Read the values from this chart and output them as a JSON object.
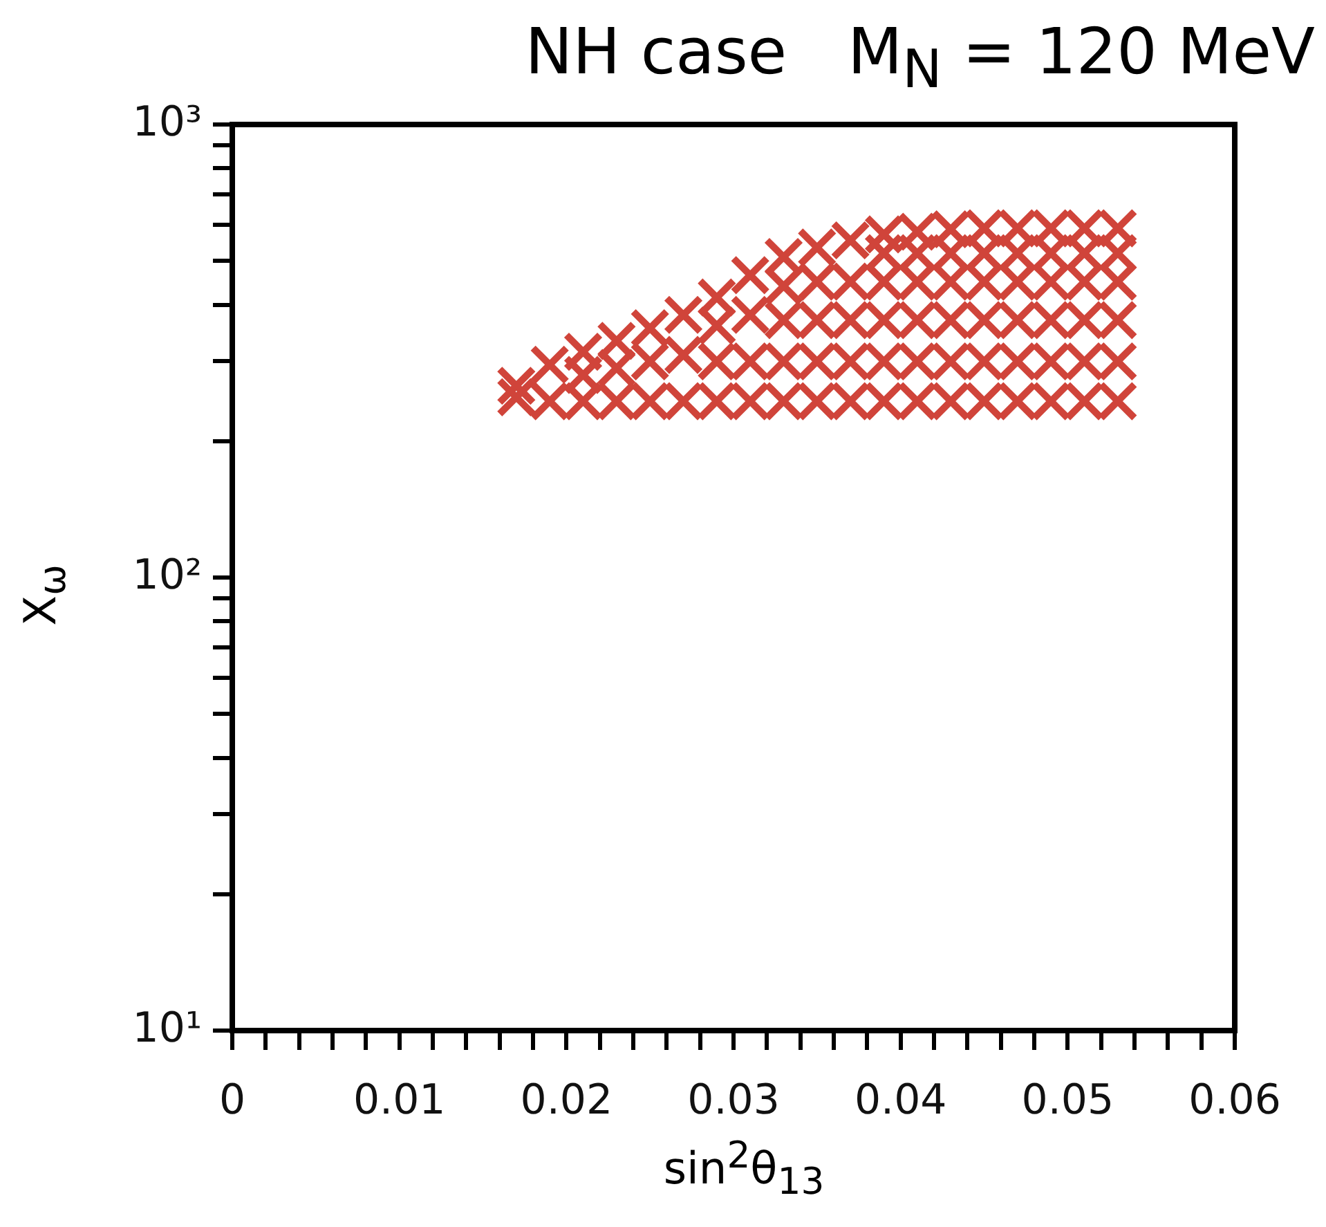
{
  "chart_data": {
    "type": "scatter",
    "title": "NH case   M$_{N}$ = 120 MeV",
    "xlabel": "sin$^{2}$θ$_{13}$",
    "ylabel": "X$_{ω}$",
    "color": "#d0443a",
    "marker": "cross",
    "log": "y",
    "grid": false,
    "legend": false,
    "xlim": [
      0,
      0.06
    ],
    "xticks": [
      0,
      {
        "value": 0.002,
        "label": null
      },
      {
        "value": 0.004,
        "label": null
      },
      {
        "value": 0.006,
        "label": null
      },
      {
        "value": 0.008,
        "label": null
      },
      0.01,
      {
        "value": 0.012,
        "label": null
      },
      {
        "value": 0.014,
        "label": null
      },
      {
        "value": 0.016,
        "label": null
      },
      {
        "value": 0.018,
        "label": null
      },
      0.02,
      {
        "value": 0.022,
        "label": null
      },
      {
        "value": 0.024,
        "label": null
      },
      {
        "value": 0.026,
        "label": null
      },
      {
        "value": 0.028,
        "label": null
      },
      0.03,
      {
        "value": 0.032,
        "label": null
      },
      {
        "value": 0.034,
        "label": null
      },
      {
        "value": 0.036,
        "label": null
      },
      {
        "value": 0.038,
        "label": null
      },
      0.04,
      {
        "value": 0.042,
        "label": null
      },
      {
        "value": 0.044,
        "label": null
      },
      {
        "value": 0.046,
        "label": null
      },
      {
        "value": 0.048,
        "label": null
      },
      0.05,
      {
        "value": 0.052,
        "label": null
      },
      {
        "value": 0.054,
        "label": null
      },
      {
        "value": 0.056,
        "label": null
      },
      {
        "value": 0.058,
        "label": null
      },
      0.06
    ],
    "ylim": [
      10,
      1000
    ],
    "yticks": [
      {
        "value": 10,
        "label": "10¹"
      },
      {
        "value": 20,
        "label": null
      },
      {
        "value": 30,
        "label": null
      },
      {
        "value": 40,
        "label": null
      },
      {
        "value": 50,
        "label": null
      },
      {
        "value": 60,
        "label": null
      },
      {
        "value": 70,
        "label": null
      },
      {
        "value": 80,
        "label": null
      },
      {
        "value": 90,
        "label": null
      },
      {
        "value": 100,
        "label": "10²"
      },
      {
        "value": 200,
        "label": null
      },
      {
        "value": 300,
        "label": null
      },
      {
        "value": 400,
        "label": null
      },
      {
        "value": 500,
        "label": null
      },
      {
        "value": 600,
        "label": null
      },
      {
        "value": 700,
        "label": null
      },
      {
        "value": 800,
        "label": null
      },
      {
        "value": 900,
        "label": null
      },
      {
        "value": 1000,
        "label": "10³"
      }
    ],
    "x": [
      0.017,
      0.017,
      0.019,
      0.019,
      0.021,
      0.021,
      0.021,
      0.023,
      0.023,
      0.023,
      0.025,
      0.025,
      0.025,
      0.027,
      0.027,
      0.027,
      0.029,
      0.029,
      0.029,
      0.029,
      0.031,
      0.031,
      0.031,
      0.031,
      0.033,
      0.033,
      0.033,
      0.033,
      0.033,
      0.035,
      0.035,
      0.035,
      0.035,
      0.035,
      0.037,
      0.037,
      0.037,
      0.037,
      0.037,
      0.039,
      0.039,
      0.039,
      0.039,
      0.039,
      0.039,
      0.041,
      0.041,
      0.041,
      0.041,
      0.041,
      0.041,
      0.043,
      0.043,
      0.043,
      0.043,
      0.043,
      0.043,
      0.045,
      0.045,
      0.045,
      0.045,
      0.045,
      0.045,
      0.047,
      0.047,
      0.047,
      0.047,
      0.047,
      0.047,
      0.049,
      0.049,
      0.049,
      0.049,
      0.049,
      0.049,
      0.051,
      0.051,
      0.051,
      0.051,
      0.051,
      0.051,
      0.053,
      0.053,
      0.053,
      0.053,
      0.053,
      0.053
    ],
    "values": [
      250,
      265,
      245,
      295,
      245,
      280,
      315,
      245,
      290,
      333,
      245,
      300,
      355,
      245,
      310,
      380,
      245,
      300,
      360,
      415,
      245,
      300,
      380,
      465,
      245,
      300,
      370,
      440,
      510,
      245,
      300,
      370,
      450,
      535,
      245,
      300,
      370,
      450,
      555,
      245,
      300,
      370,
      450,
      520,
      572,
      245,
      300,
      370,
      450,
      520,
      580,
      245,
      300,
      370,
      450,
      520,
      587,
      245,
      300,
      370,
      450,
      520,
      590,
      245,
      300,
      370,
      450,
      520,
      590,
      245,
      300,
      370,
      450,
      520,
      590,
      245,
      300,
      370,
      450,
      520,
      590,
      245,
      300,
      370,
      450,
      520,
      590
    ]
  }
}
